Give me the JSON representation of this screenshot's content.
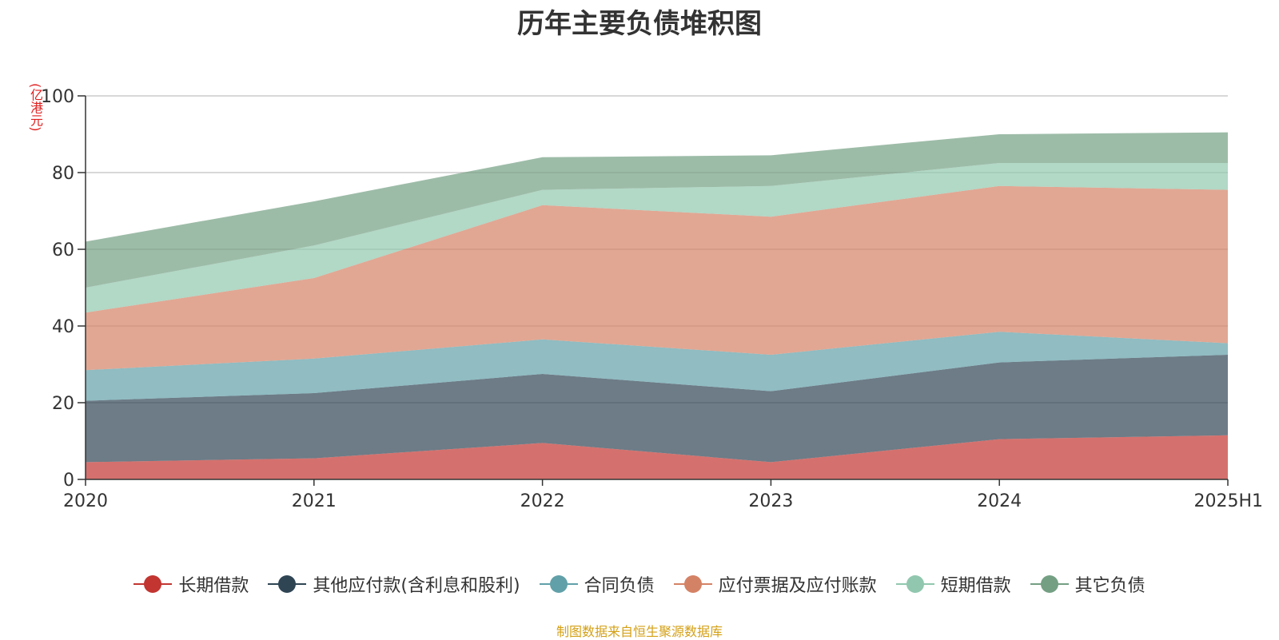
{
  "chart_data": {
    "type": "area",
    "stacked": true,
    "title": "历年主要负债堆积图",
    "ylabel": "(亿港元)",
    "categories": [
      "2020",
      "2021",
      "2022",
      "2023",
      "2024",
      "2025H1"
    ],
    "ylim": [
      0,
      100
    ],
    "yticks": [
      "0",
      "20",
      "40",
      "60",
      "80",
      "100"
    ],
    "grid": true,
    "legend_position": "bottom",
    "series": [
      {
        "name": "长期借款",
        "color": "#c23531",
        "values": [
          4.5,
          5.5,
          9.5,
          4.5,
          10.5,
          11.5
        ]
      },
      {
        "name": "其他应付款(含利息和股利)",
        "color": "#2f4554",
        "values": [
          16,
          17,
          18,
          18.5,
          20,
          21
        ]
      },
      {
        "name": "合同负债",
        "color": "#61a0a8",
        "values": [
          8,
          9,
          9,
          9.5,
          8,
          3
        ]
      },
      {
        "name": "应付票据及应付账款",
        "color": "#d48265",
        "values": [
          15,
          21,
          35,
          36,
          38,
          40
        ]
      },
      {
        "name": "短期借款",
        "color": "#91c7ae",
        "values": [
          6.5,
          8.5,
          4,
          8,
          6,
          7
        ]
      },
      {
        "name": "其它负债",
        "color": "#749f83",
        "values": [
          12,
          11.5,
          8.5,
          8,
          7.5,
          8
        ]
      }
    ]
  },
  "unit_color": "#e02020",
  "source_text": "制图数据来自恒生聚源数据库",
  "source_color": "#d4a017"
}
